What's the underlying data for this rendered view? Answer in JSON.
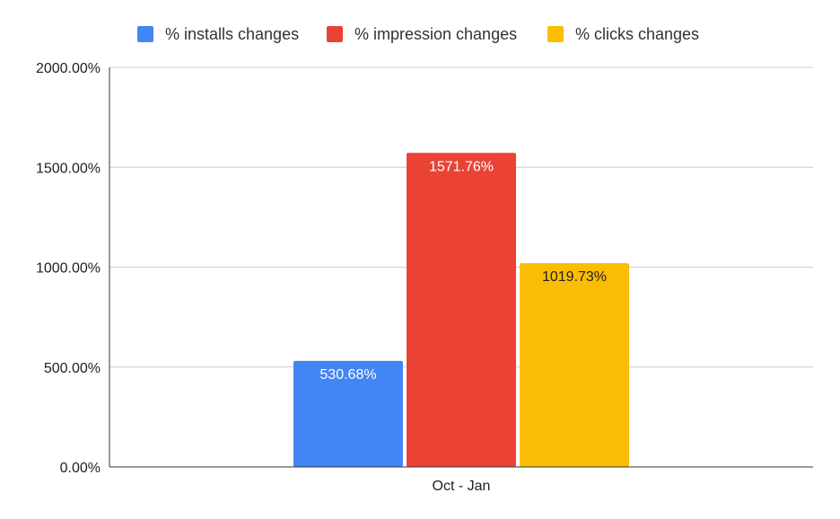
{
  "chart_data": {
    "type": "bar",
    "categories": [
      "Oct - Jan"
    ],
    "series": [
      {
        "name": "% installs changes",
        "values": [
          530.68
        ],
        "label": "530.68%",
        "color": "#4285f4",
        "label_color": "#ffffff"
      },
      {
        "name": "% impression changes",
        "values": [
          1571.76
        ],
        "label": "1571.76%",
        "color": "#ea4335",
        "label_color": "#ffffff"
      },
      {
        "name": "% clicks changes",
        "values": [
          1019.73
        ],
        "label": "1019.73%",
        "color": "#fbbc04",
        "label_color": "#222222"
      }
    ],
    "ylim": [
      0,
      2000
    ],
    "yticks": [
      0,
      500,
      1000,
      1500,
      2000
    ],
    "ytick_labels": [
      "0.00%",
      "500.00%",
      "1000.00%",
      "1500.00%",
      "2000.00%"
    ],
    "grid": true,
    "legend_position": "top-center"
  }
}
